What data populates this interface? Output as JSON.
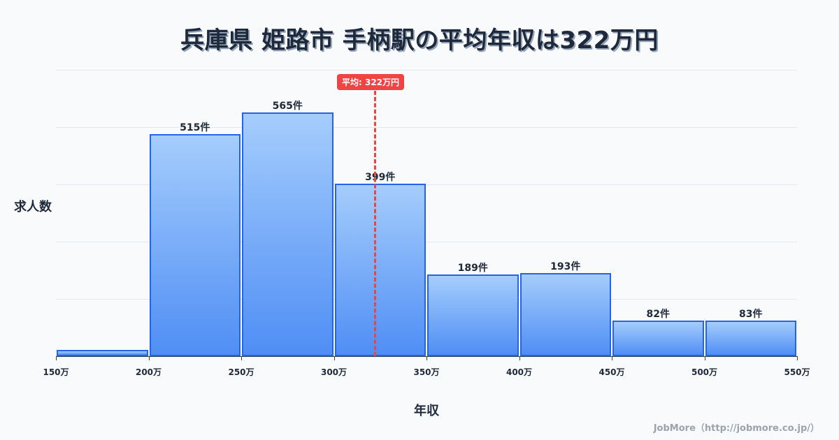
{
  "title": "兵庫県 姫路市 手柄駅の平均年収は322万円",
  "footer": "JobMore（http://jobmore.co.jp/）",
  "chart_data": {
    "type": "bar",
    "title": "兵庫県 姫路市 手柄駅の平均年収は322万円",
    "xlabel": "年収",
    "ylabel": "求人数",
    "categories": [
      "150-200万",
      "200-250万",
      "250-300万",
      "300-350万",
      "350-400万",
      "400-450万",
      "450-500万",
      "500-550万"
    ],
    "values": [
      15,
      515,
      565,
      399,
      189,
      193,
      82,
      83
    ],
    "value_labels": [
      "",
      "515件",
      "565件",
      "399件",
      "189件",
      "193件",
      "82件",
      "83件"
    ],
    "x_ticks": [
      "150万",
      "200万",
      "250万",
      "300万",
      "350万",
      "400万",
      "450万",
      "500万",
      "550万"
    ],
    "ylim": [
      0,
      663
    ],
    "grid": true,
    "average": {
      "value": 322,
      "label": "平均: 322万円",
      "color": "#ef4444"
    },
    "bar_color": "#4f8ef5",
    "bar_border_color": "#2563eb"
  }
}
